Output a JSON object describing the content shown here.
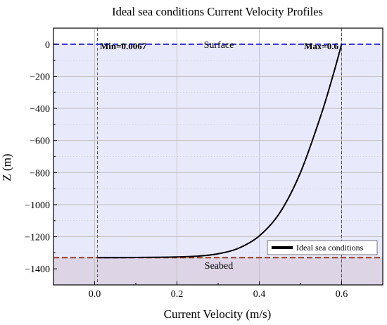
{
  "chart_data": {
    "type": "line",
    "title": "Ideal sea conditions Current Velocity Profiles",
    "xlabel": "Current Velocity (m/s)",
    "ylabel": "Z (m)",
    "xlim": [
      -0.1,
      0.7
    ],
    "ylim": [
      -1500,
      100
    ],
    "x_ticks": [
      "0.0",
      "0.2",
      "0.4",
      "0.6"
    ],
    "x_tick_values": [
      0,
      0.2,
      0.4,
      0.6
    ],
    "y_ticks": [
      "0",
      "−200",
      "−400",
      "−600",
      "−800",
      "−1000",
      "−1200",
      "−1400"
    ],
    "y_tick_values": [
      0,
      -200,
      -400,
      -600,
      -800,
      -1000,
      -1200,
      -1400
    ],
    "grid": true,
    "legend_position": "bottom-right",
    "series": [
      {
        "name": "Ideal sea conditions",
        "color": "#000000",
        "x": [
          0.0067,
          0.05,
          0.1,
          0.15,
          0.2,
          0.25,
          0.3,
          0.35,
          0.4,
          0.45,
          0.5,
          0.55,
          0.58,
          0.6
        ],
        "y": [
          -1330,
          -1330,
          -1329,
          -1328,
          -1326,
          -1321,
          -1306,
          -1271,
          -1195,
          -1050,
          -800,
          -441,
          -186,
          0
        ]
      }
    ],
    "reference_lines": [
      {
        "label": "Surface",
        "y": 0,
        "color": "#2a2ae0"
      },
      {
        "label": "Seabed",
        "y": -1330,
        "color": "#9c3a1f"
      }
    ],
    "vertical_markers": [
      {
        "label": "Min=0.0067",
        "x": 0.0067
      },
      {
        "label": "Max=0.6",
        "x": 0.6
      }
    ],
    "shading": {
      "water_color": "#e9e9fc",
      "seabed_color": "#ddd5e6"
    }
  }
}
